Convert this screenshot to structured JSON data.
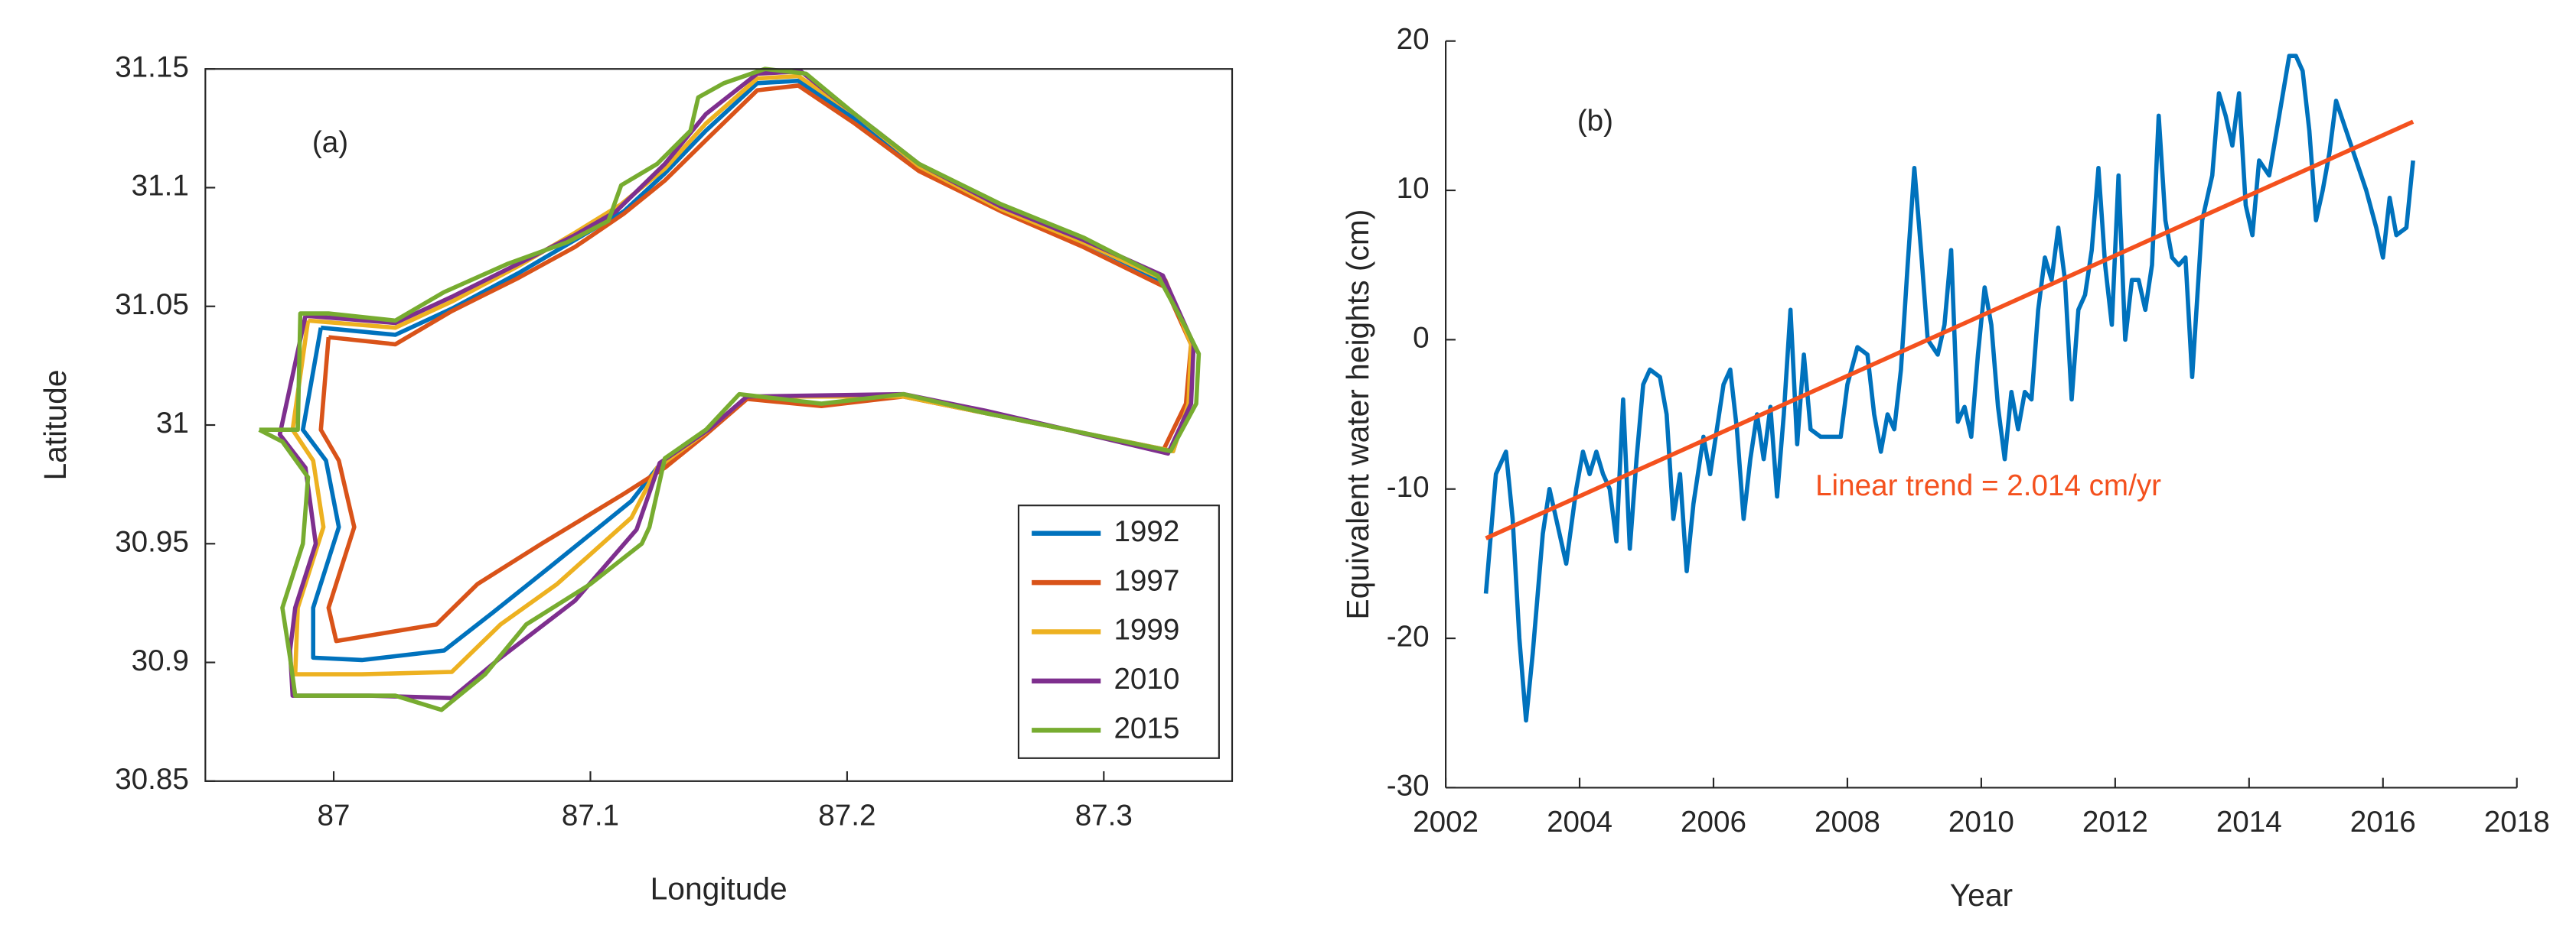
{
  "chart_data": [
    {
      "type": "line",
      "xlabel": "Longitude",
      "ylabel": "Latitude",
      "annotations": [
        "(a)"
      ],
      "xlim": [
        86.95,
        87.35
      ],
      "xticks": [
        87,
        87.1,
        87.2,
        87.3
      ],
      "ylim": [
        30.85,
        31.15
      ],
      "yticks": [
        30.85,
        30.9,
        30.95,
        31,
        31.05,
        31.1,
        31.15
      ],
      "legend": "southeast",
      "series": [
        {
          "name": "1992",
          "color": "#0072bd",
          "x": [
            86.995,
            87.024,
            87.046,
            87.072,
            87.094,
            87.113,
            87.129,
            87.145,
            87.165,
            87.181,
            87.203,
            87.228,
            87.26,
            87.292,
            87.324,
            87.335,
            87.333,
            87.327,
            87.286,
            87.222,
            87.161,
            87.145,
            87.126,
            87.116,
            87.084,
            87.062,
            87.043,
            87.011,
            86.992,
            86.992,
            87.002,
            86.997,
            86.988,
            86.995
          ],
          "values": [
            31.041,
            31.038,
            31.049,
            31.064,
            31.078,
            31.09,
            31.106,
            31.124,
            31.144,
            31.145,
            31.129,
            31.108,
            31.091,
            31.077,
            31.06,
            31.034,
            31.009,
            30.989,
            30.998,
            31.012,
            31.012,
            30.997,
            30.982,
            30.968,
            30.94,
            30.921,
            30.905,
            30.901,
            30.902,
            30.923,
            30.957,
            30.985,
            30.998,
            31.041
          ]
        },
        {
          "name": "1997",
          "color": "#d95319",
          "x": [
            86.998,
            87.024,
            87.046,
            87.072,
            87.094,
            87.113,
            87.129,
            87.145,
            87.165,
            87.181,
            87.203,
            87.228,
            87.26,
            87.292,
            87.324,
            87.334,
            87.332,
            87.323,
            87.286,
            87.254,
            87.222,
            87.19,
            87.161,
            87.145,
            87.129,
            87.113,
            87.081,
            87.056,
            87.04,
            87.001,
            86.998,
            87.008,
            87.002,
            86.995,
            86.998
          ],
          "values": [
            31.037,
            31.034,
            31.048,
            31.062,
            31.075,
            31.089,
            31.103,
            31.12,
            31.141,
            31.143,
            31.127,
            31.107,
            31.09,
            31.075,
            31.058,
            31.034,
            31.009,
            30.989,
            30.998,
            31.005,
            31.012,
            31.008,
            31.011,
            30.996,
            30.982,
            30.971,
            30.95,
            30.933,
            30.916,
            30.909,
            30.923,
            30.957,
            30.985,
            30.998,
            31.037
          ]
        },
        {
          "name": "1999",
          "color": "#edb120",
          "x": [
            86.99,
            87.024,
            87.046,
            87.072,
            87.094,
            87.112,
            87.129,
            87.145,
            87.165,
            87.181,
            87.203,
            87.228,
            87.26,
            87.292,
            87.324,
            87.334,
            87.333,
            87.327,
            87.286,
            87.222,
            87.161,
            87.145,
            87.126,
            87.116,
            87.087,
            87.065,
            87.046,
            87.011,
            86.985,
            86.986,
            86.996,
            86.992,
            86.984,
            86.99
          ],
          "values": [
            31.044,
            31.041,
            31.052,
            31.067,
            31.081,
            31.093,
            31.108,
            31.127,
            31.146,
            31.147,
            31.131,
            31.109,
            31.091,
            31.077,
            31.061,
            31.034,
            31.009,
            30.989,
            30.998,
            31.012,
            31.012,
            30.997,
            30.982,
            30.961,
            30.933,
            30.916,
            30.896,
            30.895,
            30.895,
            30.923,
            30.957,
            30.985,
            30.998,
            31.044
          ]
        },
        {
          "name": "2010",
          "color": "#7e2f8e",
          "x": [
            86.989,
            87.024,
            87.046,
            87.072,
            87.094,
            87.11,
            87.129,
            87.145,
            87.165,
            87.182,
            87.203,
            87.228,
            87.26,
            87.292,
            87.323,
            87.335,
            87.334,
            87.325,
            87.286,
            87.254,
            87.222,
            87.161,
            87.146,
            87.127,
            87.118,
            87.094,
            87.065,
            87.046,
            87.014,
            86.984,
            86.983,
            86.985,
            86.993,
            86.989,
            86.979,
            86.989
          ],
          "values": [
            31.046,
            31.043,
            31.054,
            31.068,
            31.08,
            31.09,
            31.11,
            31.131,
            31.148,
            31.149,
            31.131,
            31.11,
            31.092,
            31.078,
            31.063,
            31.034,
            31.009,
            30.988,
            30.998,
            31.006,
            31.013,
            31.012,
            30.998,
            30.984,
            30.956,
            30.926,
            30.902,
            30.885,
            30.886,
            30.886,
            30.905,
            30.923,
            30.95,
            30.982,
            30.996,
            31.046
          ]
        },
        {
          "name": "2015",
          "color": "#77ac30",
          "x": [
            86.971,
            86.986,
            86.987,
            86.998,
            87.024,
            87.043,
            87.068,
            87.091,
            87.107,
            87.112,
            87.126,
            87.139,
            87.142,
            87.152,
            87.168,
            87.184,
            87.203,
            87.228,
            87.26,
            87.292,
            87.321,
            87.332,
            87.337,
            87.336,
            87.326,
            87.286,
            87.254,
            87.222,
            87.19,
            87.158,
            87.145,
            87.129,
            87.123,
            87.12,
            87.1,
            87.075,
            87.059,
            87.042,
            87.024,
            86.985,
            86.983,
            86.98,
            86.988,
            86.99,
            86.98,
            86.971
          ],
          "values": [
            30.998,
            30.998,
            31.047,
            31.047,
            31.044,
            31.056,
            31.068,
            31.077,
            31.086,
            31.101,
            31.11,
            31.124,
            31.138,
            31.144,
            31.15,
            31.148,
            31.131,
            31.11,
            31.093,
            31.079,
            31.063,
            31.041,
            31.03,
            31.009,
            30.989,
            30.998,
            31.005,
            31.013,
            31.009,
            31.013,
            30.998,
            30.986,
            30.957,
            30.95,
            30.933,
            30.916,
            30.895,
            30.88,
            30.886,
            30.886,
            30.902,
            30.923,
            30.95,
            30.978,
            30.993,
            30.998
          ]
        }
      ]
    },
    {
      "type": "line",
      "xlabel": "Year",
      "ylabel": "Equivalent water heights (cm)",
      "annotations": [
        "(b)",
        "Linear trend = 2.014 cm/yr"
      ],
      "xlim": [
        2002,
        2018
      ],
      "xticks": [
        2002,
        2004,
        2006,
        2008,
        2010,
        2012,
        2014,
        2016,
        2018
      ],
      "ylim": [
        -30,
        20
      ],
      "yticks": [
        -30,
        -20,
        -10,
        0,
        10,
        20
      ],
      "series": [
        {
          "color": "#0072bd",
          "x": [
            2002.6,
            2002.75,
            2002.9,
            2003.0,
            2003.1,
            2003.2,
            2003.3,
            2003.45,
            2003.55,
            2003.7,
            2003.8,
            2003.95,
            2004.05,
            2004.15,
            2004.25,
            2004.35,
            2004.45,
            2004.55,
            2004.65,
            2004.75,
            2004.85,
            2004.95,
            2005.05,
            2005.2,
            2005.3,
            2005.4,
            2005.5,
            2005.6,
            2005.7,
            2005.85,
            2005.95,
            2006.05,
            2006.15,
            2006.25,
            2006.35,
            2006.45,
            2006.55,
            2006.65,
            2006.75,
            2006.85,
            2006.95,
            2007.05,
            2007.15,
            2007.25,
            2007.35,
            2007.45,
            2007.6,
            2007.75,
            2007.9,
            2008.0,
            2008.15,
            2008.3,
            2008.4,
            2008.5,
            2008.6,
            2008.7,
            2008.8,
            2008.9,
            2009.0,
            2009.1,
            2009.2,
            2009.35,
            2009.45,
            2009.55,
            2009.65,
            2009.75,
            2009.85,
            2009.95,
            2010.05,
            2010.15,
            2010.25,
            2010.35,
            2010.45,
            2010.55,
            2010.65,
            2010.75,
            2010.85,
            2010.95,
            2011.05,
            2011.15,
            2011.25,
            2011.35,
            2011.45,
            2011.55,
            2011.65,
            2011.75,
            2011.85,
            2011.95,
            2012.05,
            2012.15,
            2012.25,
            2012.35,
            2012.45,
            2012.55,
            2012.65,
            2012.75,
            2012.85,
            2012.95,
            2013.05,
            2013.15,
            2013.3,
            2013.45,
            2013.55,
            2013.65,
            2013.75,
            2013.85,
            2013.95,
            2014.05,
            2014.15,
            2014.3,
            2014.45,
            2014.6,
            2014.7,
            2014.8,
            2014.9,
            2015.0,
            2015.1,
            2015.2,
            2015.3,
            2015.45,
            2015.6,
            2015.75,
            2015.9,
            2016.0,
            2016.1,
            2016.2,
            2016.35,
            2016.45
          ],
          "values": [
            -17,
            -9,
            -7.5,
            -12,
            -20,
            -25.5,
            -21,
            -13,
            -10,
            -13,
            -15,
            -10,
            -7.5,
            -9,
            -7.5,
            -9,
            -10,
            -13.5,
            -4,
            -14,
            -8,
            -3,
            -2,
            -2.5,
            -5,
            -12,
            -9,
            -15.5,
            -11,
            -6.5,
            -9,
            -6,
            -3,
            -2,
            -6,
            -12,
            -8,
            -5,
            -8,
            -4.5,
            -10.5,
            -5,
            2,
            -7,
            -1,
            -6,
            -6.5,
            -6.5,
            -6.5,
            -3,
            -0.5,
            -1,
            -5,
            -7.5,
            -5,
            -6,
            -2,
            5,
            11.5,
            6,
            0,
            -1,
            1,
            6,
            -5.5,
            -4.5,
            -6.5,
            -1,
            3.5,
            1,
            -4.5,
            -8,
            -3.5,
            -6,
            -3.5,
            -4,
            2,
            5.5,
            4,
            7.5,
            4,
            -4,
            2,
            3,
            6,
            11.5,
            5,
            1,
            11,
            0,
            4,
            4,
            2,
            5,
            15,
            8,
            5.5,
            5,
            5.5,
            -2.5,
            8,
            11,
            16.5,
            15,
            13,
            16.5,
            9,
            7,
            12,
            11,
            15,
            19,
            19,
            18,
            14,
            8,
            10,
            12.5,
            16,
            14,
            12,
            10,
            7.5,
            5.5,
            9.5,
            7,
            7.5,
            12
          ]
        },
        {
          "color": "#f4511e",
          "x": [
            2002.6,
            2016.45
          ],
          "values": [
            -13.3,
            14.6
          ]
        }
      ]
    }
  ]
}
